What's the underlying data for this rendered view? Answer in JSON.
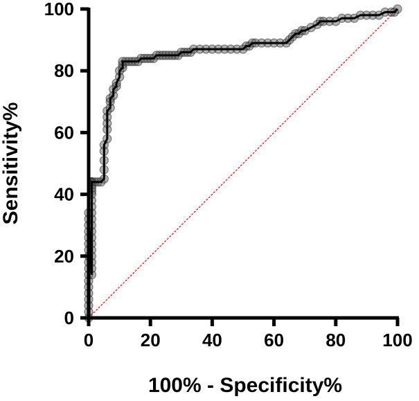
{
  "chart_data": {
    "type": "line",
    "xlabel": "100% - Specificity%",
    "ylabel": "Sensitivity%",
    "xlim": [
      0,
      100
    ],
    "ylim": [
      0,
      100
    ],
    "xticks": [
      "0",
      "20",
      "40",
      "60",
      "80",
      "100"
    ],
    "yticks": [
      "0",
      "20",
      "40",
      "60",
      "80",
      "100"
    ],
    "grid": false,
    "colors": {
      "series": "#000000",
      "marker": "#555555",
      "reference": "#ff0000"
    },
    "series": [
      {
        "x": [
          0,
          0,
          0,
          0,
          0,
          0,
          0,
          0,
          0,
          0,
          0,
          0,
          0,
          0,
          0,
          0,
          0,
          0,
          1,
          1,
          1,
          1,
          1,
          1,
          1,
          1,
          1,
          1,
          1,
          1,
          1,
          1,
          1,
          1,
          1,
          1,
          1,
          1,
          1,
          1,
          1,
          1,
          1,
          2,
          3,
          4,
          5,
          5,
          5,
          5,
          5,
          6,
          6,
          6,
          6,
          6,
          7,
          7,
          7,
          8,
          8,
          9,
          9,
          10,
          10,
          11,
          11,
          11,
          12,
          13,
          14,
          15,
          16,
          17,
          18,
          19,
          20,
          21,
          22,
          23,
          24,
          25,
          26,
          27,
          28,
          29,
          30,
          31,
          32,
          33,
          34,
          36,
          38,
          40,
          42,
          44,
          46,
          48,
          50,
          51,
          52,
          53,
          54,
          56,
          58,
          60,
          62,
          64,
          65,
          66,
          67,
          68,
          69,
          70,
          72,
          74,
          75,
          76,
          78,
          80,
          82,
          84,
          86,
          88,
          90,
          92,
          94,
          96,
          98,
          99,
          100
        ],
        "y": [
          0,
          2,
          4,
          6,
          8,
          10,
          12,
          14,
          16,
          18,
          20,
          22,
          24,
          26,
          28,
          30,
          32,
          34,
          14,
          16,
          18,
          20,
          22,
          24,
          26,
          28,
          30,
          32,
          34,
          36,
          38,
          40,
          41,
          42,
          43,
          44,
          44,
          44,
          44,
          44,
          44,
          44,
          44,
          44,
          44,
          44,
          45,
          48,
          51,
          54,
          56,
          58,
          61,
          63,
          65,
          67,
          68,
          70,
          71,
          72,
          74,
          75,
          76,
          78,
          80,
          81,
          82,
          83,
          83,
          83,
          83,
          83,
          83,
          84,
          84,
          84,
          84,
          84,
          85,
          85,
          85,
          85,
          85,
          85,
          85,
          85,
          86,
          86,
          86,
          86,
          87,
          87,
          87,
          87,
          87,
          87,
          87,
          87,
          87,
          88,
          88,
          89,
          89,
          89,
          89,
          89,
          89,
          89,
          90,
          91,
          92,
          92,
          93,
          93,
          94,
          95,
          96,
          96,
          96,
          96,
          97,
          97,
          97,
          98,
          98,
          98,
          98,
          99,
          99,
          99,
          100
        ]
      }
    ],
    "reference_line": {
      "x": [
        0,
        100
      ],
      "y": [
        0,
        100
      ]
    }
  }
}
